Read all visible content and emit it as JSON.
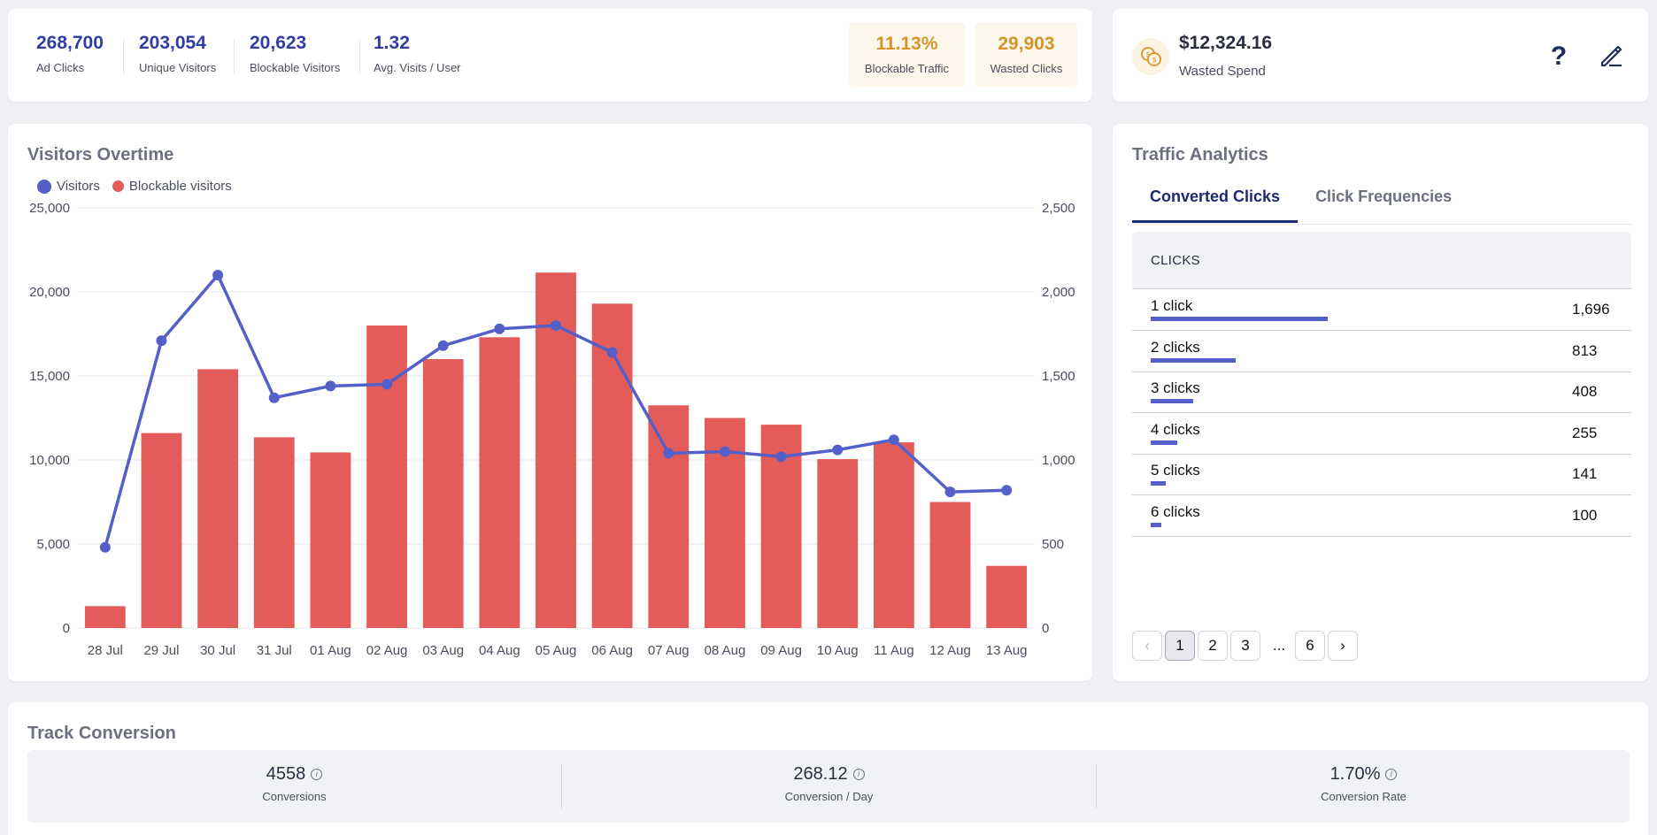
{
  "stats": [
    {
      "value": "268,700",
      "label": "Ad Clicks"
    },
    {
      "value": "203,054",
      "label": "Unique Visitors"
    },
    {
      "value": "20,623",
      "label": "Blockable Visitors"
    },
    {
      "value": "1.32",
      "label": "Avg. Visits / User"
    }
  ],
  "warnings": [
    {
      "value": "11.13%",
      "label": "Blockable Traffic"
    },
    {
      "value": "29,903",
      "label": "Wasted Clicks"
    }
  ],
  "spend": {
    "value": "$12,324.16",
    "label": "Wasted Spend",
    "icons": [
      "coins-icon",
      "help-icon",
      "edit-icon"
    ]
  },
  "chart_card": {
    "title": "Visitors Overtime"
  },
  "chart_data": {
    "type": "bar",
    "categories": [
      "28 Jul",
      "29 Jul",
      "30 Jul",
      "31 Jul",
      "01 Aug",
      "02 Aug",
      "03 Aug",
      "04 Aug",
      "05 Aug",
      "06 Aug",
      "07 Aug",
      "08 Aug",
      "09 Aug",
      "10 Aug",
      "11 Aug",
      "12 Aug",
      "13 Aug"
    ],
    "series": [
      {
        "name": "Visitors",
        "type": "line",
        "axis": "left",
        "color": "#5460c8",
        "values": [
          4800,
          17100,
          21000,
          13700,
          14400,
          14500,
          16800,
          17800,
          18000,
          16400,
          10400,
          10500,
          10200,
          10600,
          11200,
          8100,
          8200
        ]
      },
      {
        "name": "Blockable visitors",
        "type": "bar",
        "axis": "right",
        "color": "#e45c5a",
        "values": [
          130,
          1160,
          1540,
          1135,
          1045,
          1800,
          1600,
          1730,
          2115,
          1930,
          1325,
          1250,
          1210,
          1005,
          1105,
          750,
          370
        ]
      }
    ],
    "y_left": {
      "min": 0,
      "max": 25000,
      "ticks": [
        "0",
        "5,000",
        "10,000",
        "15,000",
        "20,000",
        "25,000"
      ]
    },
    "y_right": {
      "min": 0,
      "max": 2500,
      "ticks": [
        "0",
        "500",
        "1,000",
        "1,500",
        "2,000",
        "2,500"
      ]
    },
    "grid": true,
    "legend": "top-left"
  },
  "traffic": {
    "title": "Traffic Analytics",
    "tabs": [
      "Converted Clicks",
      "Click Frequencies"
    ],
    "active_tab": 0,
    "column": "CLICKS",
    "rows": [
      {
        "label": "1 click",
        "value": "1,696",
        "fraction": 1.0
      },
      {
        "label": "2 clicks",
        "value": "813",
        "fraction": 0.479
      },
      {
        "label": "3 clicks",
        "value": "408",
        "fraction": 0.241
      },
      {
        "label": "4 clicks",
        "value": "255",
        "fraction": 0.15
      },
      {
        "label": "5 clicks",
        "value": "141",
        "fraction": 0.083
      },
      {
        "label": "6 clicks",
        "value": "100",
        "fraction": 0.059
      }
    ],
    "pager": {
      "pages": [
        "1",
        "2",
        "3",
        "6"
      ],
      "current": "1",
      "ellipsis": "..."
    }
  },
  "track": {
    "title": "Track Conversion",
    "metrics": [
      {
        "value": "4558",
        "label": "Conversions"
      },
      {
        "value": "268.12",
        "label": "Conversion / Day"
      },
      {
        "value": "1.70%",
        "label": "Conversion Rate"
      }
    ]
  }
}
